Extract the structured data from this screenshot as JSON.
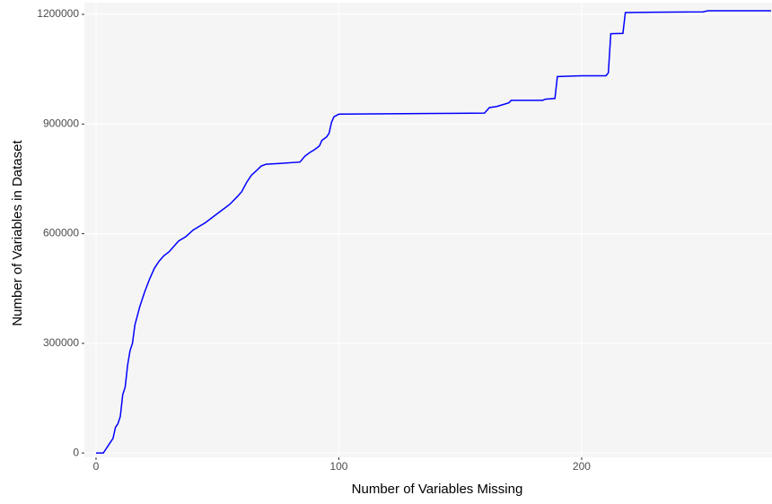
{
  "chart_data": {
    "type": "line",
    "xlabel": "Number of Variables Missing",
    "ylabel": "Number of Variables in Dataset",
    "x": [
      0,
      3,
      5,
      7,
      8,
      9,
      10,
      11,
      12,
      13,
      14,
      15,
      16,
      18,
      20,
      22,
      24,
      26,
      28,
      30,
      32,
      34,
      37,
      40,
      45,
      50,
      55,
      58,
      60,
      62,
      64,
      66,
      68,
      70,
      75,
      84,
      86,
      88,
      90,
      92,
      93,
      95,
      96,
      97,
      98,
      100,
      120,
      140,
      160,
      162,
      165,
      170,
      171,
      184,
      185,
      189,
      190,
      200,
      210,
      211,
      212,
      217,
      218,
      230,
      250,
      252,
      278
    ],
    "series": [
      {
        "name": "Number of Variables in Dataset",
        "color": "#0000ff",
        "values": [
          0,
          0,
          20000,
          40000,
          70000,
          80000,
          100000,
          160000,
          180000,
          240000,
          280000,
          300000,
          350000,
          400000,
          440000,
          475000,
          505000,
          525000,
          540000,
          550000,
          565000,
          580000,
          592000,
          610000,
          630000,
          655000,
          680000,
          700000,
          715000,
          740000,
          760000,
          772000,
          785000,
          790000,
          792000,
          796000,
          812000,
          822000,
          830000,
          840000,
          855000,
          865000,
          875000,
          905000,
          920000,
          927000,
          928000,
          929000,
          930000,
          945000,
          948000,
          958000,
          965000,
          965000,
          968000,
          970000,
          1030000,
          1032000,
          1032000,
          1040000,
          1147000,
          1148000,
          1205000,
          1206000,
          1207000,
          1210000,
          1210000
        ]
      }
    ],
    "xlim": [
      -4.8,
      278.4
    ],
    "xticks": [
      0,
      100,
      200
    ],
    "ylim": [
      -12000,
      1232000
    ],
    "yticks": [
      0,
      300000,
      600000,
      900000,
      1200000
    ],
    "grid": true
  }
}
